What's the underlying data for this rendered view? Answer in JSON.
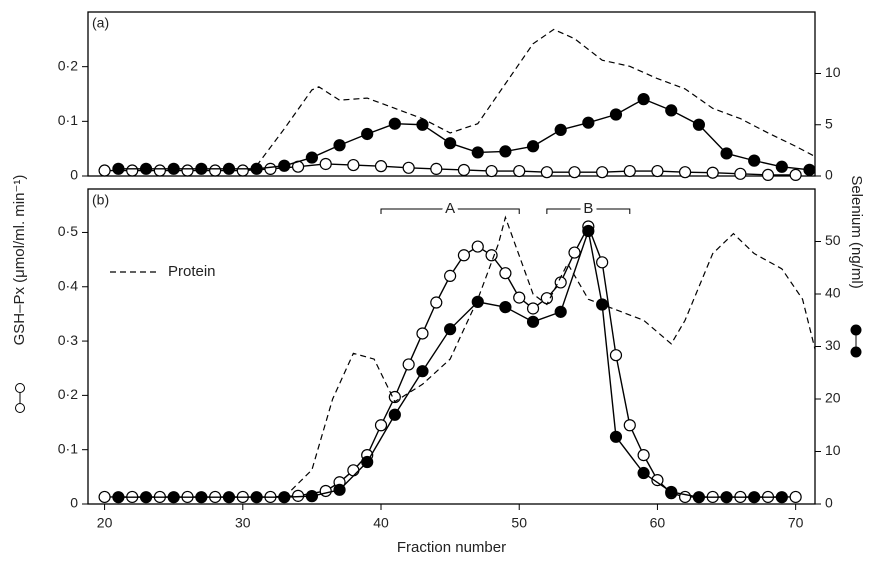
{
  "chart_data": [
    {
      "type": "line",
      "title": "(a)",
      "xlim": [
        18.8,
        71.4
      ],
      "ylim": [
        0,
        0.3
      ],
      "yticks": [
        0,
        {
          "value": 0.1,
          "label": "0·1"
        },
        {
          "value": 0.2,
          "label": "0·2"
        }
      ],
      "y2lim": [
        0,
        16
      ],
      "y2ticks": [
        0,
        5,
        10
      ],
      "series": [
        {
          "marker": "open",
          "color": "#000000",
          "x": [
            20,
            22,
            24,
            26,
            28,
            30,
            32,
            34,
            36,
            38,
            40,
            42,
            44,
            46,
            48,
            50,
            52,
            54,
            56,
            58,
            60,
            62,
            64,
            66,
            68,
            70
          ],
          "values": [
            0.01,
            0.01,
            0.01,
            0.01,
            0.01,
            0.01,
            0.013,
            0.017,
            0.022,
            0.02,
            0.018,
            0.015,
            0.013,
            0.011,
            0.009,
            0.009,
            0.007,
            0.007,
            0.007,
            0.009,
            0.009,
            0.007,
            0.006,
            0.004,
            0.002,
            0.002
          ]
        },
        {
          "marker": "filled",
          "color": "#000000",
          "axis": "y2",
          "x": [
            21,
            23,
            25,
            27,
            29,
            31,
            33,
            35,
            37,
            39,
            41,
            43,
            45,
            47,
            49,
            51,
            53,
            55,
            57,
            59,
            61,
            63,
            65,
            67,
            69,
            71
          ],
          "values": [
            0.7,
            0.7,
            0.7,
            0.7,
            0.7,
            0.7,
            1.0,
            1.8,
            3.0,
            4.1,
            5.1,
            5.0,
            3.2,
            2.3,
            2.4,
            2.9,
            4.5,
            5.2,
            6.0,
            7.5,
            6.4,
            5.0,
            2.2,
            1.5,
            0.9,
            0.6
          ]
        },
        {
          "name": "Protein",
          "marker": "dashed",
          "color": "#000000",
          "axis": "y2",
          "x": [
            31,
            33,
            35,
            35.5,
            37,
            39,
            41,
            43,
            45,
            47,
            49,
            51,
            52.5,
            54,
            56,
            58,
            60,
            62,
            64,
            66,
            68,
            70,
            71.4
          ],
          "values": [
            1.0,
            4.6,
            8.4,
            8.7,
            7.4,
            7.6,
            6.6,
            5.6,
            4.2,
            5.1,
            9.0,
            12.9,
            14.3,
            13.4,
            11.3,
            10.7,
            9.5,
            8.5,
            6.6,
            5.6,
            4.2,
            2.9,
            1.9
          ]
        }
      ]
    },
    {
      "type": "line",
      "title": "(b)",
      "xlabel": "Fraction number",
      "ylabel": "GSH–Px (μmol/ml. min⁻¹)",
      "y2label": "Selenium (ng/ml)",
      "legend": "upper left",
      "xlim": [
        18.8,
        71.4
      ],
      "xticks": [
        20,
        30,
        40,
        50,
        60,
        70
      ],
      "ylim": [
        0,
        0.58
      ],
      "yticks": [
        0,
        {
          "value": 0.1,
          "label": "0·1"
        },
        {
          "value": 0.2,
          "label": "0·2"
        },
        {
          "value": 0.3,
          "label": "0·3"
        },
        {
          "value": 0.4,
          "label": "0·4"
        },
        {
          "value": 0.5,
          "label": "0·5"
        }
      ],
      "y2lim": [
        0,
        60
      ],
      "y2ticks": [
        0,
        10,
        20,
        30,
        40,
        50
      ],
      "annotations": [
        {
          "text": "A",
          "fraction_range": [
            40,
            50
          ]
        },
        {
          "text": "B",
          "fraction_range": [
            52,
            58
          ]
        }
      ],
      "series": [
        {
          "marker": "open",
          "color": "#000000",
          "x": [
            20,
            22,
            24,
            26,
            28,
            30,
            32,
            34,
            36,
            37,
            38,
            39,
            40,
            41,
            42,
            43,
            44,
            45,
            46,
            47,
            48,
            49,
            50,
            51,
            52,
            53,
            54,
            55,
            56,
            57,
            58,
            59,
            60,
            61,
            62,
            64,
            66,
            68,
            70
          ],
          "values": [
            0.013,
            0.013,
            0.013,
            0.013,
            0.013,
            0.013,
            0.013,
            0.015,
            0.024,
            0.04,
            0.062,
            0.09,
            0.145,
            0.197,
            0.257,
            0.314,
            0.371,
            0.42,
            0.458,
            0.474,
            0.458,
            0.425,
            0.38,
            0.36,
            0.379,
            0.408,
            0.463,
            0.511,
            0.445,
            0.274,
            0.145,
            0.09,
            0.044,
            0.02,
            0.013,
            0.013,
            0.013,
            0.013,
            0.013
          ]
        },
        {
          "marker": "filled",
          "color": "#000000",
          "axis": "y2",
          "x": [
            21,
            23,
            25,
            27,
            29,
            31,
            33,
            35,
            37,
            39,
            41,
            43,
            45,
            47,
            49,
            51,
            53,
            55,
            56,
            57,
            59,
            61,
            63,
            65,
            67,
            69
          ],
          "values": [
            1.3,
            1.3,
            1.3,
            1.3,
            1.3,
            1.3,
            1.3,
            1.5,
            2.7,
            8,
            17,
            25.3,
            33.3,
            38.5,
            37.5,
            34.7,
            36.6,
            52,
            38,
            12.8,
            5.9,
            2.3,
            1.3,
            1.3,
            1.3,
            1.3
          ]
        },
        {
          "name": "Protein",
          "marker": "dashed",
          "color": "#000000",
          "axis": "y2",
          "x": [
            33,
            35,
            36.5,
            38,
            39.5,
            41,
            43,
            45,
            47,
            48.5,
            49,
            51,
            52,
            53.5,
            55,
            57,
            59,
            61,
            62,
            64,
            65.5,
            67,
            69,
            70.5,
            71.4
          ],
          "values": [
            1.3,
            6.5,
            20,
            28.7,
            27.6,
            19.5,
            22.8,
            27.6,
            39,
            49.6,
            54.6,
            40,
            38,
            45.8,
            39,
            37,
            35,
            30.5,
            35,
            47.7,
            51.5,
            47.7,
            44.8,
            39,
            29.5
          ]
        }
      ]
    }
  ]
}
